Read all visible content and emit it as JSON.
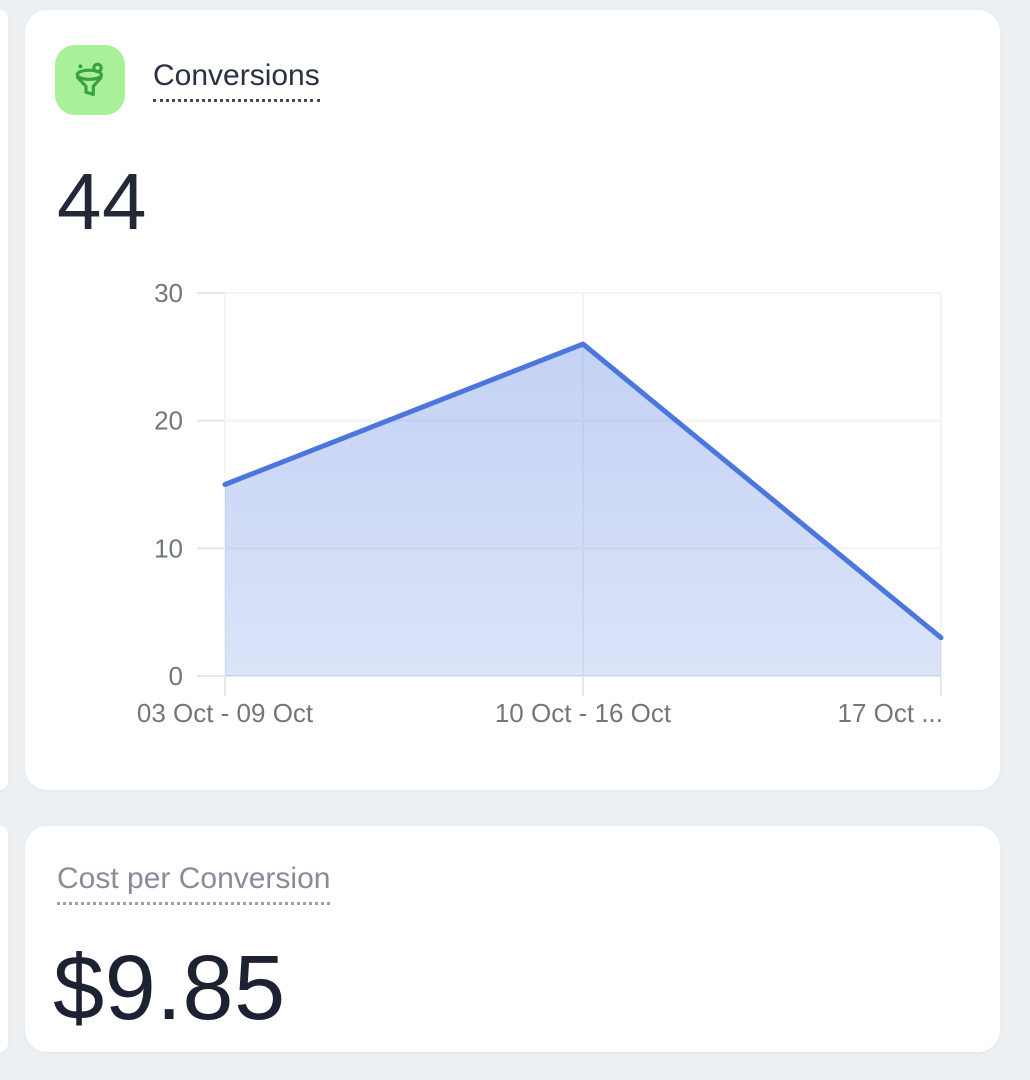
{
  "page": {
    "background": "#edf0f3"
  },
  "cards": {
    "conversions": {
      "title": "Conversions",
      "value": "44",
      "icon": "funnel-icon",
      "icon_bg_color": "#a9f199",
      "icon_stroke_color": "#3aa23c"
    },
    "cost_per_conversion": {
      "title": "Cost per Conversion",
      "value": "$9.85"
    }
  },
  "chart_data": {
    "type": "area",
    "title": "Conversions",
    "categories": [
      "03 Oct - 09 Oct",
      "10 Oct - 16 Oct",
      "17 Oct ..."
    ],
    "values": [
      15,
      26,
      3
    ],
    "xlabel": "",
    "ylabel": "",
    "ylim": [
      0,
      30
    ],
    "yticks": [
      0,
      10,
      20,
      30
    ],
    "grid": true,
    "legend": "none",
    "line_color": "#4b76dd",
    "fill_color": "rgba(75,118,221,0.27)",
    "axis_label_color": "#72777c"
  }
}
